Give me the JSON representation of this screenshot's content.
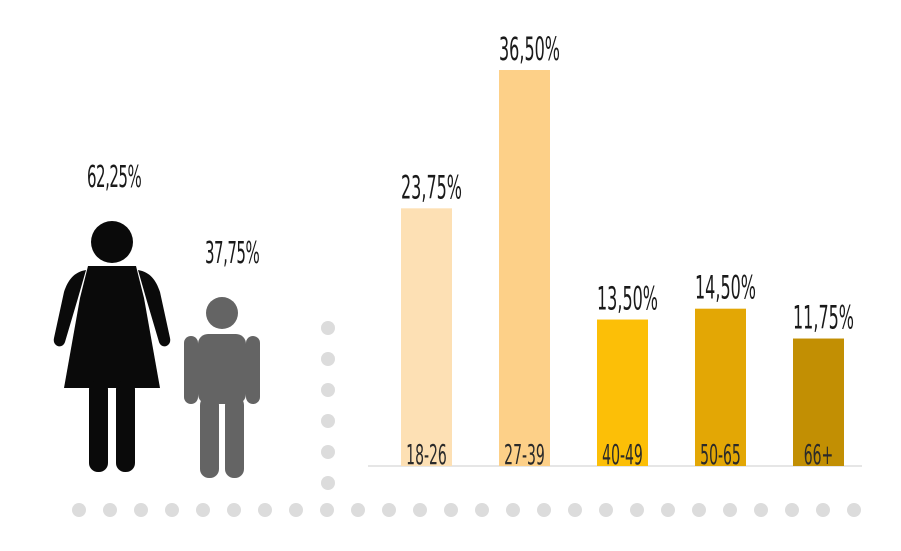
{
  "gender": {
    "female": {
      "label": "62,25%",
      "value": 62.25,
      "icon": "woman-icon",
      "color": "#0a0a0a"
    },
    "male": {
      "label": "37,75%",
      "value": 37.75,
      "icon": "man-icon",
      "color": "#646464"
    }
  },
  "chart_data": {
    "type": "bar",
    "title": "",
    "xlabel": "",
    "ylabel": "",
    "categories": [
      "18-26",
      "27-39",
      "40-49",
      "50-65",
      "66+"
    ],
    "values": [
      23.75,
      36.5,
      13.5,
      14.5,
      11.75
    ],
    "value_labels": [
      "23,75%",
      "36,50%",
      "13,50%",
      "14,50%",
      "11,75%"
    ],
    "colors": [
      "#fde0b4",
      "#fdd088",
      "#fcbf07",
      "#e3a705",
      "#c28f03"
    ],
    "ylim": [
      0,
      40
    ],
    "grid": false
  }
}
